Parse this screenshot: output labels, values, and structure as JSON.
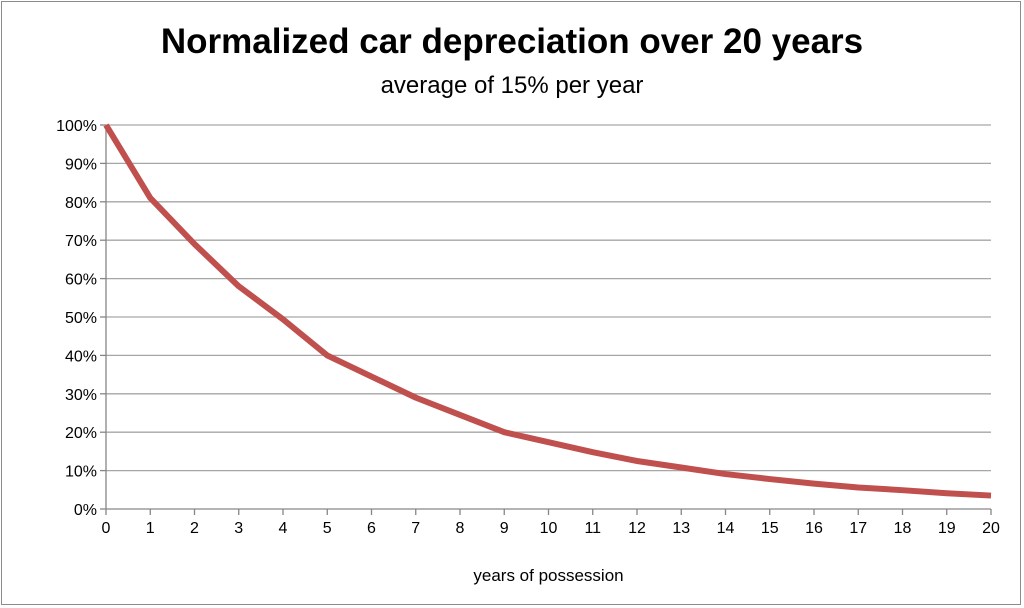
{
  "chart_data": {
    "type": "line",
    "title": "Normalized car depreciation over 20 years",
    "subtitle": "average of 15% per year",
    "xlabel": "years of possession",
    "ylabel": "",
    "x": [
      0,
      1,
      2,
      3,
      4,
      5,
      6,
      7,
      8,
      9,
      10,
      11,
      12,
      13,
      14,
      15,
      16,
      17,
      18,
      19,
      20
    ],
    "series": [
      {
        "values": [
          100,
          81,
          69,
          58,
          49.4,
          40,
          34.5,
          29,
          24.5,
          20,
          17.4,
          14.8,
          12.5,
          10.8,
          9.1,
          7.8,
          6.6,
          5.6,
          4.9,
          4.1,
          3.5
        ],
        "color": "#c0504d"
      }
    ],
    "xlim": [
      0,
      20
    ],
    "ylim": [
      0,
      100
    ],
    "yticks": [
      "0%",
      "10%",
      "20%",
      "30%",
      "40%",
      "50%",
      "60%",
      "70%",
      "80%",
      "90%",
      "100%"
    ],
    "xticks": [
      "0",
      "1",
      "2",
      "3",
      "4",
      "5",
      "6",
      "7",
      "8",
      "9",
      "10",
      "11",
      "12",
      "13",
      "14",
      "15",
      "16",
      "17",
      "18",
      "19",
      "20"
    ],
    "grid": "horizontal",
    "legend": "none"
  }
}
